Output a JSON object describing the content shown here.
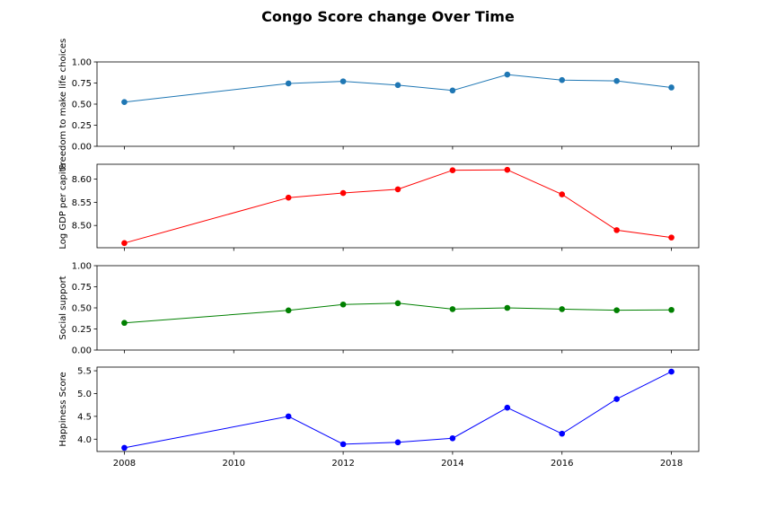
{
  "chart_data": {
    "title": "Congo Score change Over Time",
    "x": [
      2008,
      2011,
      2012,
      2013,
      2014,
      2015,
      2016,
      2017,
      2018
    ],
    "xlim": [
      2007.5,
      2018.5
    ],
    "xticks": [
      2008,
      2010,
      2012,
      2014,
      2016,
      2018
    ],
    "xtick_labels": [
      "2008",
      "2010",
      "2012",
      "2014",
      "2016",
      "2018"
    ],
    "panels": [
      {
        "type": "line",
        "ylabel": "Freedom to make life choices",
        "color": "#1f77b4",
        "values": [
          0.525,
          0.745,
          0.77,
          0.725,
          0.662,
          0.85,
          0.785,
          0.775,
          0.697
        ],
        "ylim": [
          0,
          1
        ],
        "yticks": [
          0.0,
          0.25,
          0.5,
          0.75,
          1.0
        ],
        "ytick_labels": [
          "0.00",
          "0.25",
          "0.50",
          "0.75",
          "1.00"
        ]
      },
      {
        "type": "line",
        "ylabel": "Log GDP per capita",
        "color": "#ff0000",
        "values": [
          8.462,
          8.56,
          8.57,
          8.578,
          8.619,
          8.62,
          8.567,
          8.49,
          8.474
        ],
        "ylim": [
          8.452,
          8.632
        ],
        "yticks": [
          8.5,
          8.55,
          8.6
        ],
        "ytick_labels": [
          "8.50",
          "8.55",
          "8.60"
        ]
      },
      {
        "type": "line",
        "ylabel": "Social support",
        "color": "#008000",
        "values": [
          0.322,
          0.47,
          0.54,
          0.555,
          0.485,
          0.5,
          0.485,
          0.472,
          0.476
        ],
        "ylim": [
          0,
          1
        ],
        "yticks": [
          0.0,
          0.25,
          0.5,
          0.75,
          1.0
        ],
        "ytick_labels": [
          "0.00",
          "0.25",
          "0.50",
          "0.75",
          "1.00"
        ]
      },
      {
        "type": "line",
        "ylabel": "Happiness Score",
        "color": "#0000ff",
        "values": [
          3.81,
          4.5,
          3.89,
          3.93,
          4.02,
          4.69,
          4.12,
          4.88,
          5.48
        ],
        "ylim": [
          3.73,
          5.58
        ],
        "yticks": [
          4.0,
          4.5,
          5.0,
          5.5
        ],
        "ytick_labels": [
          "4.0",
          "4.5",
          "5.0",
          "5.5"
        ]
      }
    ]
  }
}
